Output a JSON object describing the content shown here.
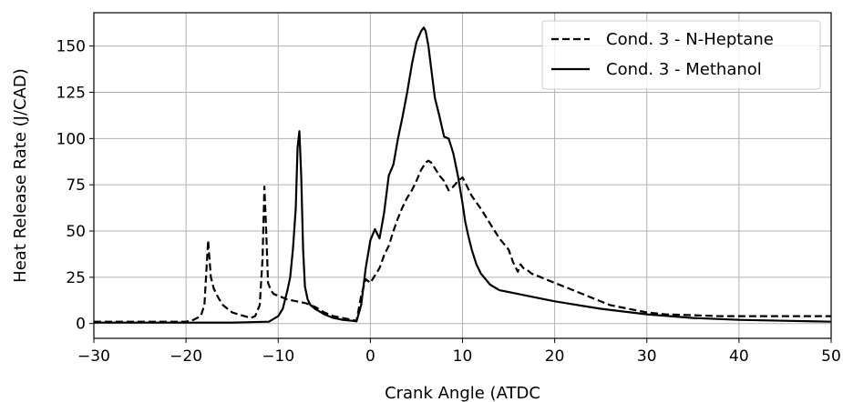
{
  "chart_data": {
    "type": "line",
    "title": "",
    "xlabel": "Crank Angle (ATDC",
    "ylabel": "Heat Release Rate (J/CAD)",
    "xlim": [
      -30,
      50
    ],
    "ylim": [
      -8,
      168
    ],
    "xticks": [
      -30,
      -20,
      -10,
      0,
      10,
      20,
      30,
      40,
      50
    ],
    "xtick_labels": [
      "−30",
      "−20",
      "−10",
      "0",
      "10",
      "20",
      "30",
      "40",
      "50"
    ],
    "yticks": [
      0,
      25,
      50,
      75,
      100,
      125,
      150
    ],
    "ytick_labels": [
      "0",
      "25",
      "50",
      "75",
      "100",
      "125",
      "150"
    ],
    "grid": true,
    "legend_position": "top-right",
    "series": [
      {
        "name": "Cond. 3 - N-Heptane",
        "style": "dashed",
        "color": "#000000",
        "x": [
          -30,
          -20,
          -19.2,
          -18.8,
          -18.4,
          -18.0,
          -17.8,
          -17.6,
          -17.5,
          -17.3,
          -17.0,
          -16.5,
          -16.0,
          -15.5,
          -15.0,
          -14.0,
          -13.0,
          -12.5,
          -12.0,
          -11.7,
          -11.5,
          -11.3,
          -11.1,
          -10.8,
          -10.5,
          -10.0,
          -9.0,
          -8.0,
          -7.0,
          -6.0,
          -5.0,
          -4.0,
          -3.0,
          -2.0,
          -1.5,
          -1.0,
          -0.5,
          0.0,
          0.5,
          1.0,
          1.5,
          2.0,
          2.5,
          3.0,
          3.5,
          4.0,
          4.5,
          5.0,
          5.5,
          6.0,
          6.3,
          6.6,
          7.0,
          7.5,
          8.0,
          8.5,
          9.0,
          9.5,
          10.0,
          10.5,
          11.0,
          12.0,
          13.0,
          14.0,
          15.0,
          15.5,
          16.0,
          16.3,
          16.6,
          17.0,
          17.5,
          18.0,
          20.0,
          22.0,
          24.0,
          26.0,
          28.0,
          30.0,
          32.0,
          35.0,
          38.0,
          42.0,
          46.0,
          50.0
        ],
        "y": [
          1,
          1,
          2,
          3,
          4,
          10,
          28,
          45,
          38,
          25,
          19,
          14,
          10,
          8,
          6,
          4.5,
          3,
          4,
          10,
          35,
          74,
          50,
          22,
          18,
          16,
          15,
          13,
          12,
          11,
          9,
          6,
          4,
          3,
          2,
          1.5,
          15,
          24,
          22,
          26,
          30,
          37,
          42,
          50,
          57,
          63,
          68,
          72,
          77,
          83,
          87,
          88,
          87,
          84,
          80,
          77,
          72,
          74,
          77,
          79,
          74,
          69,
          62,
          54,
          46,
          40,
          33,
          28,
          32,
          30,
          29,
          27,
          26,
          22,
          18,
          14,
          10,
          8,
          6,
          5,
          4.5,
          4,
          4,
          4,
          4
        ]
      },
      {
        "name": "Cond. 3 - Methanol",
        "style": "solid",
        "color": "#000000",
        "x": [
          -30,
          -15,
          -11,
          -10,
          -9.5,
          -9.0,
          -8.7,
          -8.4,
          -8.1,
          -7.9,
          -7.7,
          -7.5,
          -7.3,
          -7.1,
          -6.8,
          -6.5,
          -6.0,
          -5.0,
          -4.0,
          -3.0,
          -2.0,
          -1.5,
          -1.0,
          -0.5,
          0.0,
          0.5,
          1.0,
          1.5,
          2.0,
          2.5,
          3.0,
          3.5,
          4.0,
          4.5,
          5.0,
          5.5,
          5.8,
          6.0,
          6.3,
          6.6,
          7.0,
          7.5,
          8.0,
          8.5,
          9.0,
          9.5,
          10.0,
          10.3,
          10.6,
          11.0,
          11.5,
          12.0,
          13.0,
          14.0,
          15.0,
          17.0,
          20.0,
          25.0,
          30.0,
          35.0,
          40.0,
          45.0,
          50.0
        ],
        "y": [
          0.5,
          0.5,
          1,
          4,
          8,
          18,
          25,
          40,
          62,
          95,
          104,
          80,
          40,
          20,
          13,
          10,
          8,
          5,
          3,
          2,
          1.5,
          1.2,
          10,
          30,
          45,
          51,
          46,
          60,
          80,
          86,
          100,
          112,
          125,
          140,
          152,
          158,
          160,
          158,
          150,
          138,
          122,
          112,
          101,
          100,
          92,
          80,
          65,
          55,
          48,
          40,
          32,
          27,
          21,
          18,
          17,
          15,
          12,
          8,
          5,
          3,
          2,
          1.5,
          1
        ]
      }
    ]
  }
}
